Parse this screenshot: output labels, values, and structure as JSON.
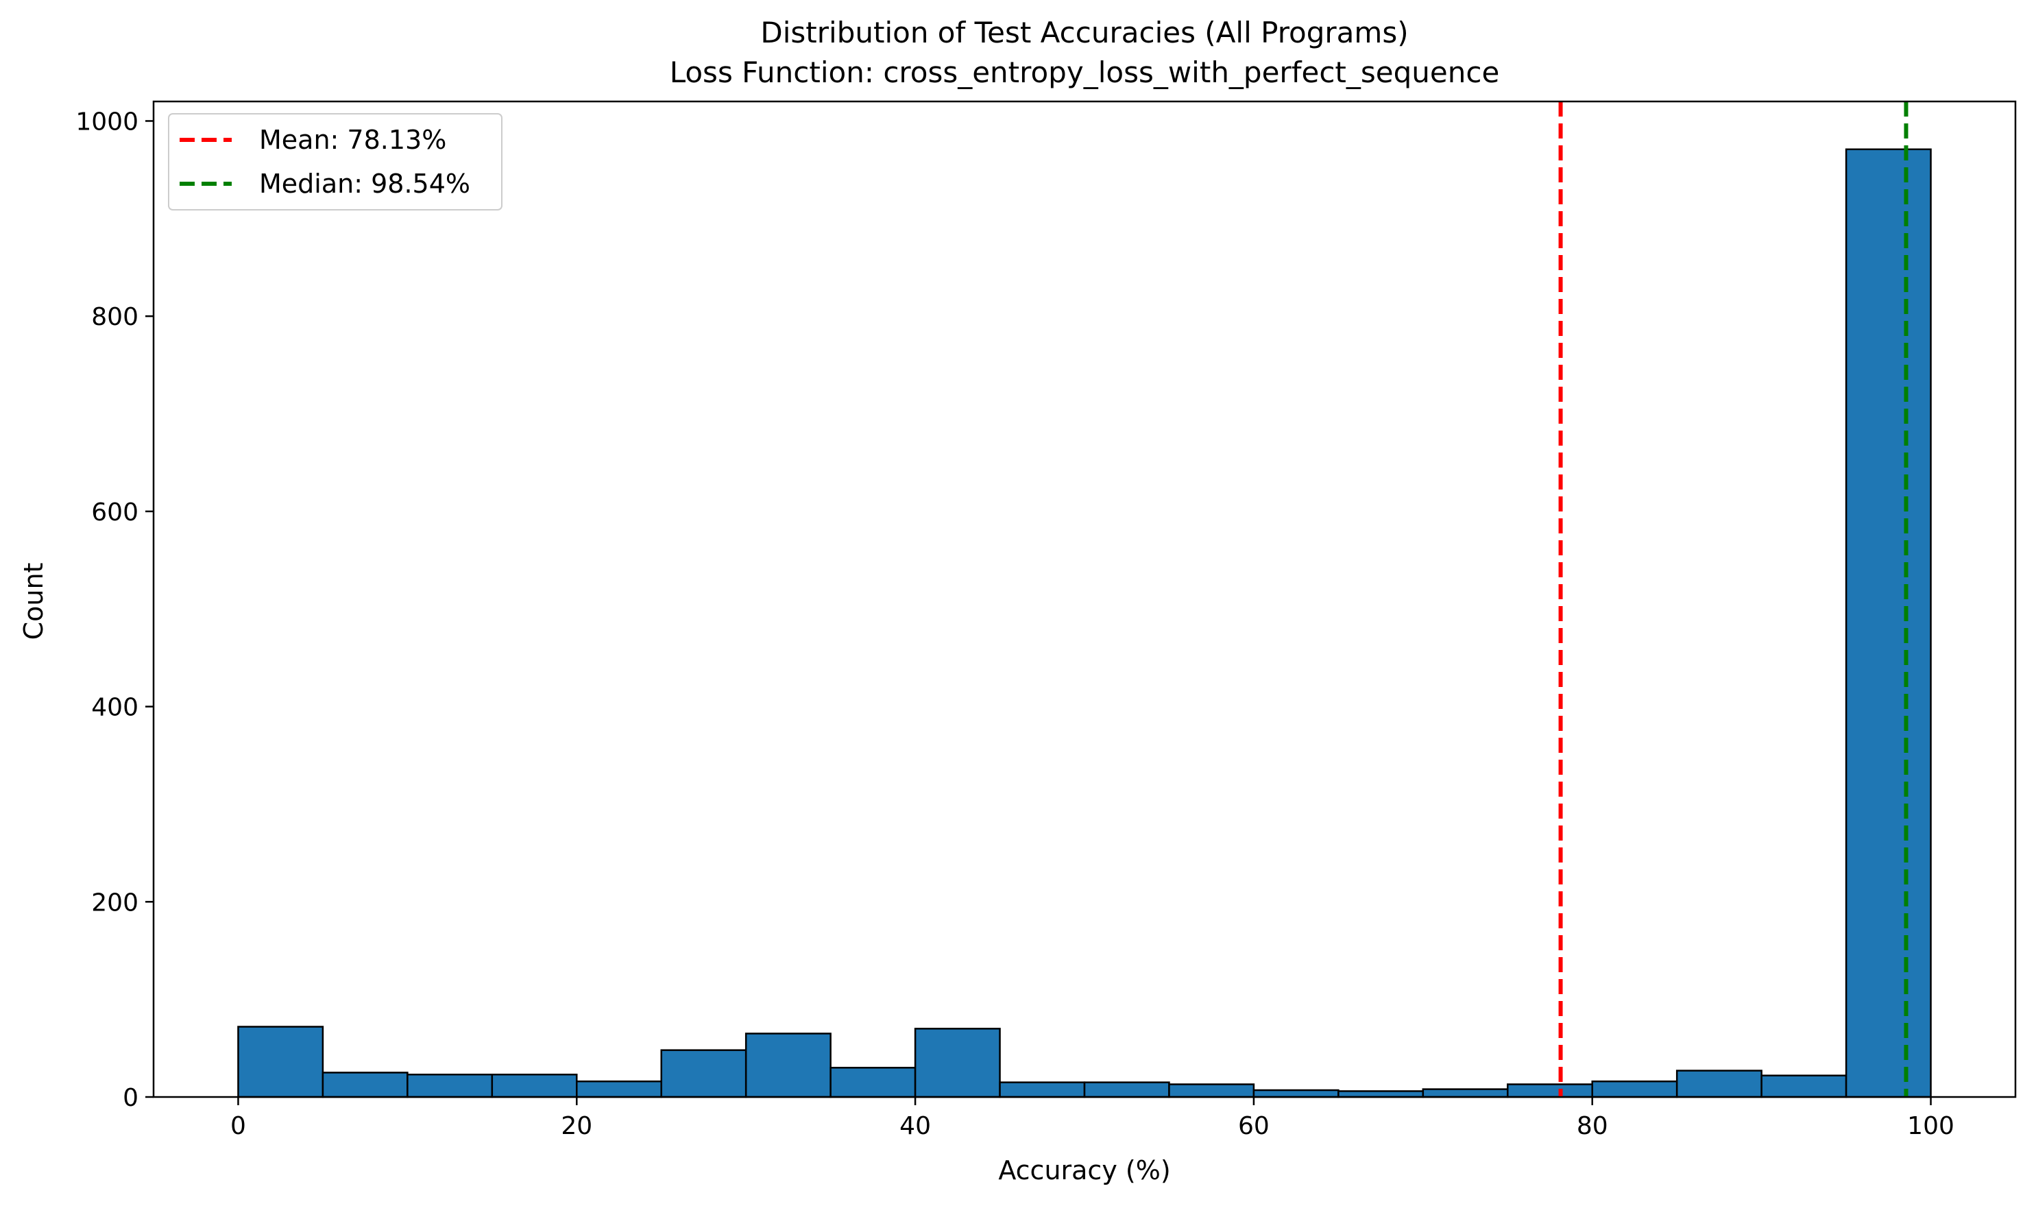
{
  "chart_data": {
    "type": "bar",
    "title": "Distribution of Test Accuracies (All Programs)",
    "subtitle": "Loss Function: cross_entropy_loss_with_perfect_sequence",
    "xlabel": "Accuracy (%)",
    "ylabel": "Count",
    "xlim": [
      -5,
      105
    ],
    "ylim": [
      0,
      1020
    ],
    "xticks": [
      0,
      20,
      40,
      60,
      80,
      100
    ],
    "yticks": [
      0,
      200,
      400,
      600,
      800,
      1000
    ],
    "bin_edges": [
      0,
      5,
      10,
      15,
      20,
      25,
      30,
      35,
      40,
      45,
      50,
      55,
      60,
      65,
      70,
      75,
      80,
      85,
      90,
      95,
      100
    ],
    "counts": [
      72,
      25,
      23,
      23,
      16,
      48,
      65,
      30,
      70,
      15,
      15,
      13,
      7,
      6,
      8,
      13,
      16,
      27,
      22,
      971
    ],
    "bar_color": "#1f77b4",
    "bar_edge_color": "#000000",
    "reference_lines": [
      {
        "label": "Mean: 78.13%",
        "value": 78.13,
        "color": "#ff0000",
        "style": "dashed"
      },
      {
        "label": "Median: 98.54%",
        "value": 98.54,
        "color": "#008000",
        "style": "dashed"
      }
    ],
    "legend_position": "top-left",
    "grid": false
  }
}
